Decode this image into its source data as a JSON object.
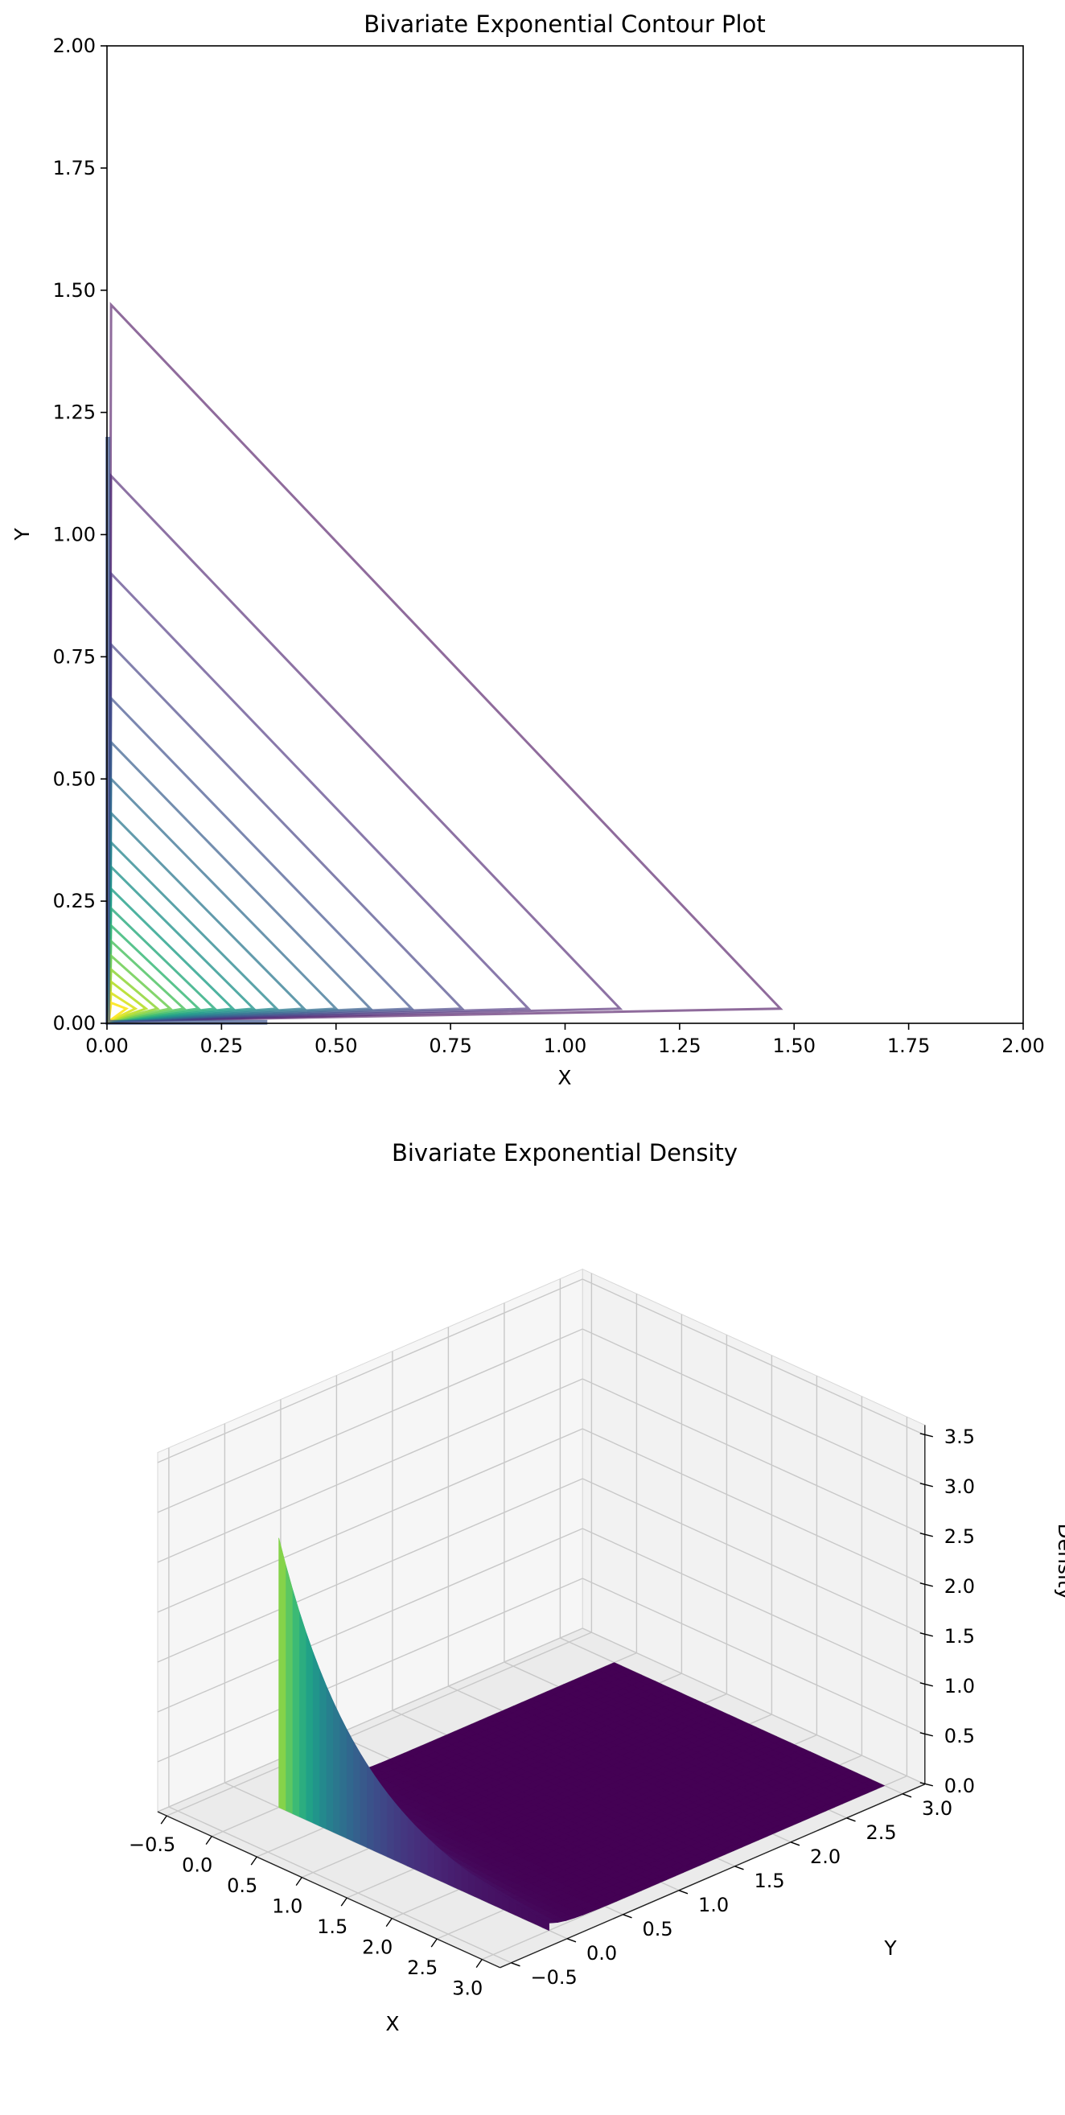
{
  "chart_data": [
    {
      "type": "contour",
      "title": "Bivariate Exponential Contour Plot",
      "xlabel": "X",
      "ylabel": "Y",
      "xlim": [
        0,
        2
      ],
      "ylim": [
        0,
        2
      ],
      "xticks": [
        "0.00",
        "0.25",
        "0.50",
        "0.75",
        "1.00",
        "1.25",
        "1.50",
        "1.75",
        "2.00"
      ],
      "yticks": [
        "0.00",
        "0.25",
        "0.50",
        "0.75",
        "1.00",
        "1.25",
        "1.50",
        "1.75",
        "2.00"
      ],
      "grid": false,
      "colormap": "viridis",
      "contour_extents": [
        1.47,
        1.12,
        0.92,
        0.775,
        0.665,
        0.575,
        0.5,
        0.43,
        0.37,
        0.32,
        0.275,
        0.235,
        0.2,
        0.168,
        0.138,
        0.11,
        0.085,
        0.062,
        0.042
      ],
      "apex_offset": 0.03
    },
    {
      "type": "surface3d",
      "title": "Bivariate Exponential Density",
      "xlabel": "X",
      "ylabel": "Y",
      "zlabel": "Density",
      "xticks": [
        "−0.5",
        "0.0",
        "0.5",
        "1.0",
        "1.5",
        "2.0",
        "2.5",
        "3.0"
      ],
      "yticks": [
        "−0.5",
        "0.0",
        "0.5",
        "1.0",
        "1.5",
        "2.0",
        "2.5",
        "3.0"
      ],
      "zticks": [
        "0.0",
        "0.5",
        "1.0",
        "1.5",
        "2.0",
        "2.5",
        "3.0",
        "3.5"
      ],
      "x_range": [
        0,
        3
      ],
      "y_range": [
        0,
        3
      ],
      "z_max": 2.7,
      "colormap": "viridis",
      "pane_color": "#f2f2f2",
      "surface_floor_color": "#440154"
    }
  ]
}
